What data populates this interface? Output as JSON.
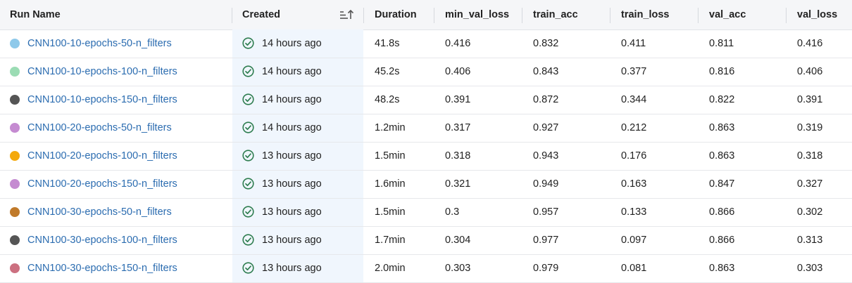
{
  "columns": {
    "run_name": "Run Name",
    "created": "Created",
    "duration": "Duration",
    "min_val_loss": "min_val_loss",
    "train_acc": "train_acc",
    "train_loss": "train_loss",
    "val_acc": "val_acc",
    "val_loss": "val_loss"
  },
  "sort_icon": "sort-ascending-icon",
  "status_icon": "check-circle-icon",
  "colors": {
    "link": "#2b6cb0",
    "check": "#2e7d4f",
    "created_highlight": "#f0f6fd",
    "header_bg": "#f5f6f8"
  },
  "rows": [
    {
      "name": "CNN100-10-epochs-50-n_filters",
      "color": "#8ec9ea",
      "created": "14 hours ago",
      "duration": "41.8s",
      "min_val_loss": "0.416",
      "train_acc": "0.832",
      "train_loss": "0.411",
      "val_acc": "0.811",
      "val_loss": "0.416"
    },
    {
      "name": "CNN100-10-epochs-100-n_filters",
      "color": "#9bdcb4",
      "created": "14 hours ago",
      "duration": "45.2s",
      "min_val_loss": "0.406",
      "train_acc": "0.843",
      "train_loss": "0.377",
      "val_acc": "0.816",
      "val_loss": "0.406"
    },
    {
      "name": "CNN100-10-epochs-150-n_filters",
      "color": "#555555",
      "created": "14 hours ago",
      "duration": "48.2s",
      "min_val_loss": "0.391",
      "train_acc": "0.872",
      "train_loss": "0.344",
      "val_acc": "0.822",
      "val_loss": "0.391"
    },
    {
      "name": "CNN100-20-epochs-50-n_filters",
      "color": "#c58bd1",
      "created": "14 hours ago",
      "duration": "1.2min",
      "min_val_loss": "0.317",
      "train_acc": "0.927",
      "train_loss": "0.212",
      "val_acc": "0.863",
      "val_loss": "0.319"
    },
    {
      "name": "CNN100-20-epochs-100-n_filters",
      "color": "#f4a90c",
      "created": "13 hours ago",
      "duration": "1.5min",
      "min_val_loss": "0.318",
      "train_acc": "0.943",
      "train_loss": "0.176",
      "val_acc": "0.863",
      "val_loss": "0.318"
    },
    {
      "name": "CNN100-20-epochs-150-n_filters",
      "color": "#c58bd1",
      "created": "13 hours ago",
      "duration": "1.6min",
      "min_val_loss": "0.321",
      "train_acc": "0.949",
      "train_loss": "0.163",
      "val_acc": "0.847",
      "val_loss": "0.327"
    },
    {
      "name": "CNN100-30-epochs-50-n_filters",
      "color": "#c07a2a",
      "created": "13 hours ago",
      "duration": "1.5min",
      "min_val_loss": "0.3",
      "train_acc": "0.957",
      "train_loss": "0.133",
      "val_acc": "0.866",
      "val_loss": "0.302"
    },
    {
      "name": "CNN100-30-epochs-100-n_filters",
      "color": "#555555",
      "created": "13 hours ago",
      "duration": "1.7min",
      "min_val_loss": "0.304",
      "train_acc": "0.977",
      "train_loss": "0.097",
      "val_acc": "0.866",
      "val_loss": "0.313"
    },
    {
      "name": "CNN100-30-epochs-150-n_filters",
      "color": "#cc7080",
      "created": "13 hours ago",
      "duration": "2.0min",
      "min_val_loss": "0.303",
      "train_acc": "0.979",
      "train_loss": "0.081",
      "val_acc": "0.863",
      "val_loss": "0.303"
    }
  ]
}
